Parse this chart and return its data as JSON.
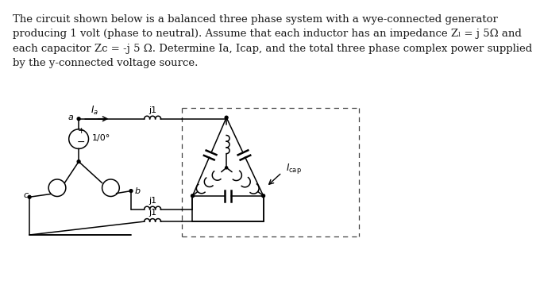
{
  "text_lines": [
    "The circuit shown below is a balanced three phase system with a wye-connected generator",
    "producing 1 volt (phase to neutral). Assume that each inductor has an impedance Zₗ = j 5Ω and",
    "each capacitor Zc = -j 5 Ω. Determine Ia, Icap, and the total three phase complex power supplied",
    "by the y-connected voltage source."
  ],
  "bg_color": "#ffffff",
  "text_color": "#1a1a1a"
}
